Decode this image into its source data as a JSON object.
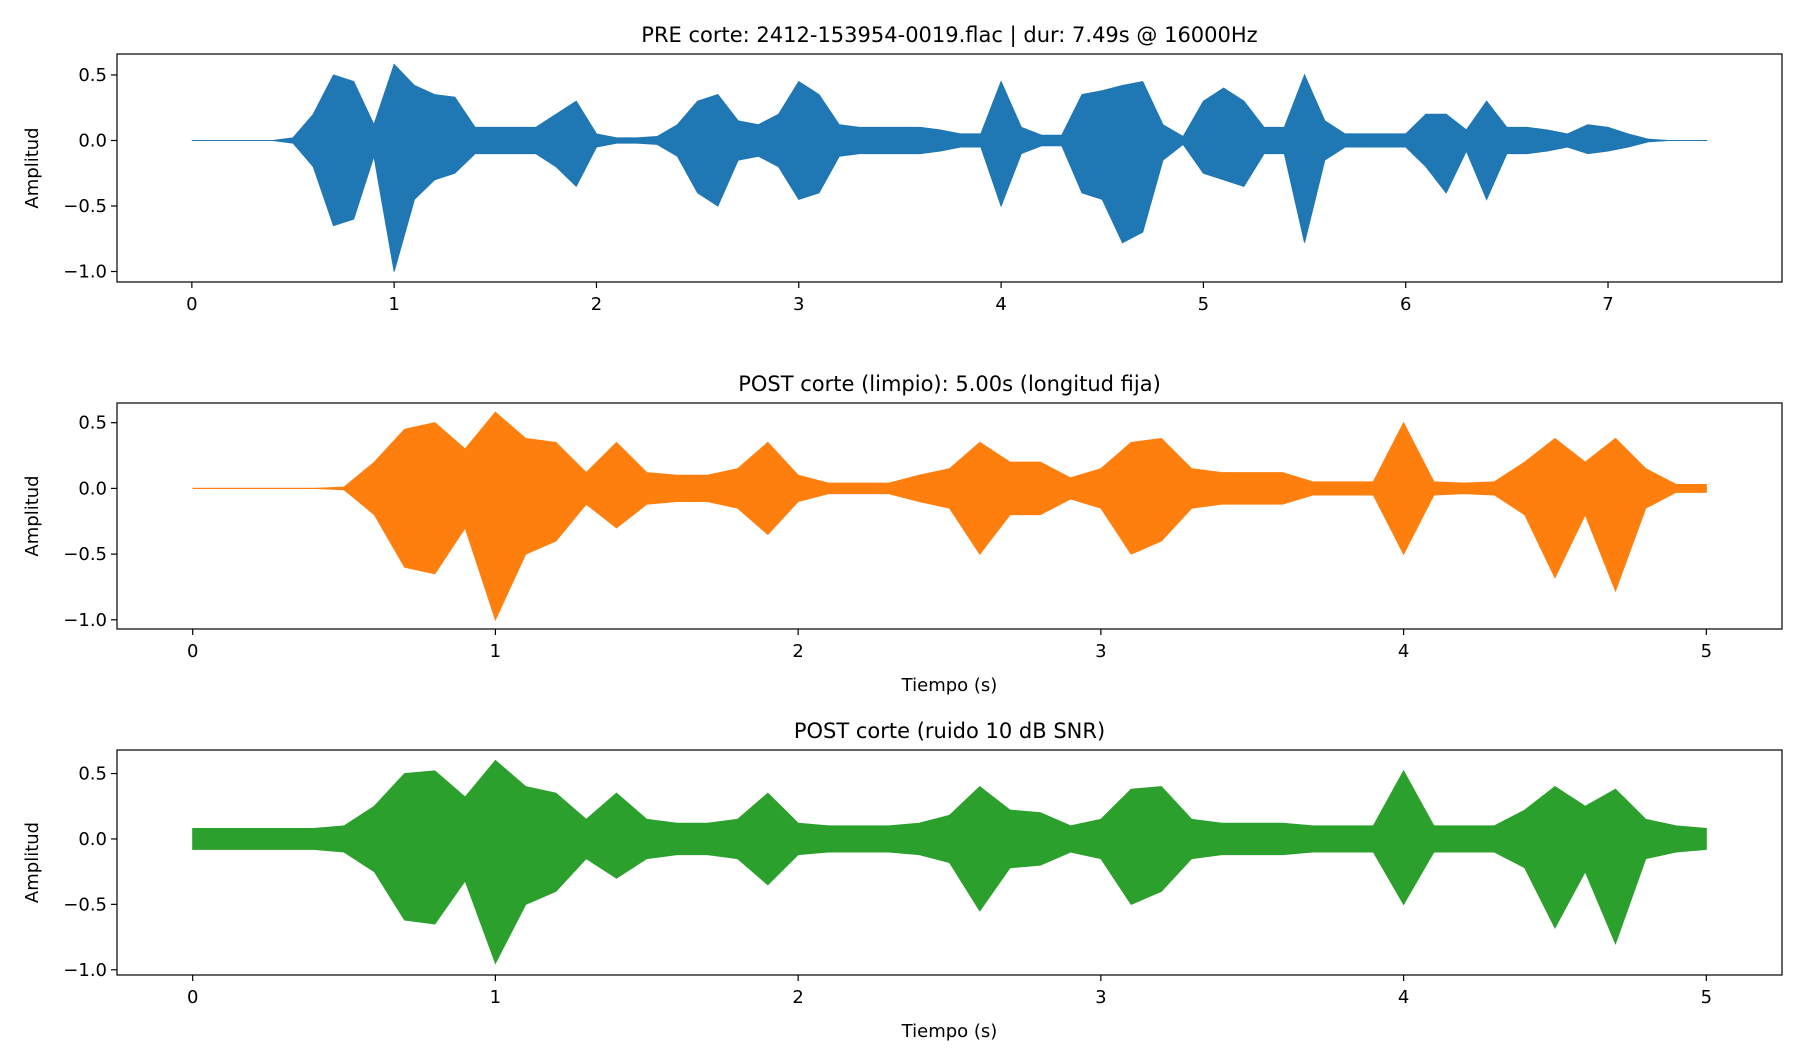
{
  "chart_data": [
    {
      "type": "area",
      "title": "PRE corte: 2412-153954-0019.flac | dur: 7.49s @ 16000Hz",
      "ylabel": "Amplitud",
      "color": "#1f77b4",
      "xlim": [
        -0.37,
        7.86
      ],
      "ylim": [
        -1.08,
        0.66
      ],
      "xticks": [
        0,
        1,
        2,
        3,
        4,
        5,
        6,
        7
      ],
      "yticks": [
        0.5,
        {
          "value": 0.0,
          "label": "0.0"
        },
        {
          "value": -0.5,
          "label": "−0.5"
        },
        {
          "value": -1.0,
          "label": "−1.0"
        }
      ],
      "x": [
        0,
        0.1,
        0.2,
        0.3,
        0.4,
        0.5,
        0.6,
        0.7,
        0.8,
        0.9,
        1.0,
        1.1,
        1.2,
        1.3,
        1.4,
        1.5,
        1.6,
        1.7,
        1.8,
        1.9,
        2.0,
        2.1,
        2.2,
        2.3,
        2.4,
        2.5,
        2.6,
        2.7,
        2.8,
        2.9,
        3.0,
        3.1,
        3.2,
        3.3,
        3.4,
        3.5,
        3.6,
        3.7,
        3.8,
        3.9,
        4.0,
        4.1,
        4.2,
        4.3,
        4.4,
        4.5,
        4.6,
        4.7,
        4.8,
        4.9,
        5.0,
        5.1,
        5.2,
        5.3,
        5.4,
        5.5,
        5.6,
        5.7,
        5.8,
        5.9,
        6.0,
        6.1,
        6.2,
        6.3,
        6.4,
        6.5,
        6.6,
        6.7,
        6.8,
        6.9,
        7.0,
        7.1,
        7.2,
        7.3,
        7.4,
        7.49
      ],
      "max": [
        0,
        0,
        0,
        0,
        0,
        0.02,
        0.2,
        0.5,
        0.45,
        0.12,
        0.58,
        0.42,
        0.35,
        0.33,
        0.1,
        0.1,
        0.1,
        0.1,
        0.2,
        0.3,
        0.05,
        0.02,
        0.02,
        0.03,
        0.12,
        0.3,
        0.35,
        0.15,
        0.12,
        0.2,
        0.45,
        0.35,
        0.12,
        0.1,
        0.1,
        0.1,
        0.1,
        0.08,
        0.05,
        0.05,
        0.45,
        0.1,
        0.04,
        0.04,
        0.35,
        0.38,
        0.42,
        0.45,
        0.12,
        0.03,
        0.3,
        0.4,
        0.3,
        0.1,
        0.1,
        0.5,
        0.15,
        0.05,
        0.05,
        0.05,
        0.05,
        0.2,
        0.2,
        0.08,
        0.3,
        0.1,
        0.1,
        0.08,
        0.05,
        0.12,
        0.1,
        0.05,
        0.01,
        0,
        0,
        0
      ],
      "min": [
        0,
        0,
        0,
        0,
        0,
        -0.02,
        -0.2,
        -0.65,
        -0.6,
        -0.12,
        -1.0,
        -0.45,
        -0.3,
        -0.25,
        -0.1,
        -0.1,
        -0.1,
        -0.1,
        -0.2,
        -0.35,
        -0.05,
        -0.02,
        -0.02,
        -0.03,
        -0.12,
        -0.4,
        -0.5,
        -0.15,
        -0.12,
        -0.2,
        -0.45,
        -0.4,
        -0.12,
        -0.1,
        -0.1,
        -0.1,
        -0.1,
        -0.08,
        -0.05,
        -0.05,
        -0.5,
        -0.1,
        -0.04,
        -0.04,
        -0.4,
        -0.45,
        -0.78,
        -0.7,
        -0.15,
        -0.03,
        -0.25,
        -0.3,
        -0.35,
        -0.1,
        -0.1,
        -0.78,
        -0.15,
        -0.05,
        -0.05,
        -0.05,
        -0.05,
        -0.2,
        -0.4,
        -0.08,
        -0.45,
        -0.1,
        -0.1,
        -0.08,
        -0.05,
        -0.1,
        -0.08,
        -0.05,
        -0.01,
        0,
        0,
        0
      ]
    },
    {
      "type": "area",
      "title": "POST corte (limpio): 5.00s (longitud fija)",
      "xlabel": "Tiempo (s)",
      "ylabel": "Amplitud",
      "color": "#ff7f0e",
      "xlim": [
        -0.25,
        5.25
      ],
      "ylim": [
        -1.07,
        0.65
      ],
      "xticks": [
        0,
        1,
        2,
        3,
        4,
        5
      ],
      "yticks": [
        0.5,
        {
          "value": 0.0,
          "label": "0.0"
        },
        {
          "value": -0.5,
          "label": "−0.5"
        },
        {
          "value": -1.0,
          "label": "−1.0"
        }
      ],
      "x": [
        0,
        0.1,
        0.2,
        0.3,
        0.4,
        0.5,
        0.6,
        0.7,
        0.8,
        0.9,
        1.0,
        1.1,
        1.2,
        1.3,
        1.4,
        1.5,
        1.6,
        1.7,
        1.8,
        1.9,
        2.0,
        2.1,
        2.2,
        2.3,
        2.4,
        2.5,
        2.6,
        2.7,
        2.8,
        2.9,
        3.0,
        3.1,
        3.2,
        3.3,
        3.4,
        3.5,
        3.6,
        3.7,
        3.8,
        3.9,
        4.0,
        4.1,
        4.2,
        4.3,
        4.4,
        4.5,
        4.6,
        4.7,
        4.8,
        4.9,
        5.0
      ],
      "max": [
        0,
        0,
        0,
        0,
        0,
        0.01,
        0.2,
        0.45,
        0.5,
        0.3,
        0.58,
        0.38,
        0.35,
        0.12,
        0.35,
        0.12,
        0.1,
        0.1,
        0.15,
        0.35,
        0.1,
        0.04,
        0.04,
        0.04,
        0.1,
        0.15,
        0.35,
        0.2,
        0.2,
        0.08,
        0.15,
        0.35,
        0.38,
        0.15,
        0.12,
        0.12,
        0.12,
        0.05,
        0.05,
        0.05,
        0.5,
        0.05,
        0.04,
        0.05,
        0.2,
        0.38,
        0.2,
        0.38,
        0.15,
        0.03,
        0.03
      ],
      "min": [
        0,
        0,
        0,
        0,
        0,
        -0.01,
        -0.2,
        -0.6,
        -0.65,
        -0.3,
        -1.0,
        -0.5,
        -0.4,
        -0.12,
        -0.3,
        -0.12,
        -0.1,
        -0.1,
        -0.15,
        -0.35,
        -0.1,
        -0.04,
        -0.04,
        -0.04,
        -0.1,
        -0.15,
        -0.5,
        -0.2,
        -0.2,
        -0.08,
        -0.15,
        -0.5,
        -0.4,
        -0.15,
        -0.12,
        -0.12,
        -0.12,
        -0.05,
        -0.05,
        -0.05,
        -0.5,
        -0.05,
        -0.04,
        -0.05,
        -0.2,
        -0.68,
        -0.2,
        -0.78,
        -0.15,
        -0.03,
        -0.03
      ]
    },
    {
      "type": "area",
      "title": "POST corte (ruido 10 dB SNR)",
      "xlabel": "Tiempo (s)",
      "ylabel": "Amplitud",
      "color": "#2ca02c",
      "xlim": [
        -0.25,
        5.25
      ],
      "ylim": [
        -1.04,
        0.68
      ],
      "xticks": [
        0,
        1,
        2,
        3,
        4,
        5
      ],
      "yticks": [
        0.5,
        {
          "value": 0.0,
          "label": "0.0"
        },
        {
          "value": -0.5,
          "label": "−0.5"
        },
        {
          "value": -1.0,
          "label": "−1.0"
        }
      ],
      "x": [
        0,
        0.1,
        0.2,
        0.3,
        0.4,
        0.5,
        0.6,
        0.7,
        0.8,
        0.9,
        1.0,
        1.1,
        1.2,
        1.3,
        1.4,
        1.5,
        1.6,
        1.7,
        1.8,
        1.9,
        2.0,
        2.1,
        2.2,
        2.3,
        2.4,
        2.5,
        2.6,
        2.7,
        2.8,
        2.9,
        3.0,
        3.1,
        3.2,
        3.3,
        3.4,
        3.5,
        3.6,
        3.7,
        3.8,
        3.9,
        4.0,
        4.1,
        4.2,
        4.3,
        4.4,
        4.5,
        4.6,
        4.7,
        4.8,
        4.9,
        5.0
      ],
      "max": [
        0.08,
        0.08,
        0.08,
        0.08,
        0.08,
        0.1,
        0.25,
        0.5,
        0.52,
        0.32,
        0.6,
        0.4,
        0.35,
        0.15,
        0.35,
        0.15,
        0.12,
        0.12,
        0.15,
        0.35,
        0.12,
        0.1,
        0.1,
        0.1,
        0.12,
        0.18,
        0.4,
        0.22,
        0.2,
        0.1,
        0.15,
        0.38,
        0.4,
        0.15,
        0.12,
        0.12,
        0.12,
        0.1,
        0.1,
        0.1,
        0.52,
        0.1,
        0.1,
        0.1,
        0.22,
        0.4,
        0.25,
        0.38,
        0.15,
        0.1,
        0.08
      ],
      "min": [
        -0.08,
        -0.08,
        -0.08,
        -0.08,
        -0.08,
        -0.1,
        -0.25,
        -0.62,
        -0.65,
        -0.32,
        -0.95,
        -0.5,
        -0.4,
        -0.15,
        -0.3,
        -0.15,
        -0.12,
        -0.12,
        -0.15,
        -0.35,
        -0.12,
        -0.1,
        -0.1,
        -0.1,
        -0.12,
        -0.18,
        -0.55,
        -0.22,
        -0.2,
        -0.1,
        -0.15,
        -0.5,
        -0.4,
        -0.15,
        -0.12,
        -0.12,
        -0.12,
        -0.1,
        -0.1,
        -0.1,
        -0.5,
        -0.1,
        -0.1,
        -0.1,
        -0.22,
        -0.68,
        -0.25,
        -0.8,
        -0.15,
        -0.1,
        -0.08
      ]
    }
  ]
}
